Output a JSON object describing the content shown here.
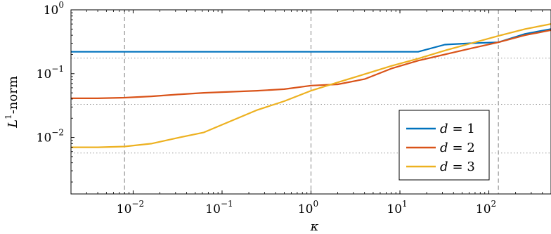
{
  "chart_data": {
    "type": "line",
    "title": "",
    "xlabel": "κ",
    "ylabel_base": "L",
    "ylabel_sup": "1",
    "ylabel_suffix": "-norm",
    "x_scale": "log",
    "y_scale": "log",
    "xlim": [
      0.002,
      500
    ],
    "ylim": [
      0.0013,
      1.0
    ],
    "x_ticks": [
      {
        "value": 0.01,
        "base": "10",
        "exp": "−2"
      },
      {
        "value": 0.1,
        "base": "10",
        "exp": "−1"
      },
      {
        "value": 1,
        "base": "10",
        "exp": "0"
      },
      {
        "value": 10,
        "base": "10",
        "exp": "1"
      },
      {
        "value": 100,
        "base": "10",
        "exp": "2"
      }
    ],
    "y_ticks": [
      {
        "value": 1,
        "base": "10",
        "exp": "0"
      },
      {
        "value": 0.1,
        "base": "10",
        "exp": "−1"
      },
      {
        "value": 0.01,
        "base": "10",
        "exp": "−2"
      }
    ],
    "vertical_dashed_lines": [
      0.008,
      1,
      128
    ],
    "horizontal_dotted_lines": [
      0.175,
      0.033,
      0.0057
    ],
    "legend_position": "lower-right",
    "series": [
      {
        "name": "d = 1",
        "label_var": "d",
        "label_eq": "= 1",
        "color": "#0072BD",
        "x": [
          0.002,
          0.004,
          0.008,
          0.016,
          0.031,
          0.0625,
          0.125,
          0.25,
          0.5,
          1,
          2,
          4,
          8,
          16,
          32,
          64,
          128,
          256,
          500
        ],
        "y": [
          0.22,
          0.22,
          0.22,
          0.22,
          0.22,
          0.22,
          0.22,
          0.22,
          0.22,
          0.22,
          0.22,
          0.22,
          0.22,
          0.22,
          0.285,
          0.3,
          0.31,
          0.42,
          0.5
        ]
      },
      {
        "name": "d = 2",
        "label_var": "d",
        "label_eq": "= 2",
        "color": "#D95319",
        "x": [
          0.002,
          0.004,
          0.008,
          0.016,
          0.031,
          0.0625,
          0.125,
          0.25,
          0.5,
          1,
          2,
          4,
          8,
          16,
          32,
          64,
          128,
          256,
          500
        ],
        "y": [
          0.041,
          0.041,
          0.042,
          0.044,
          0.047,
          0.05,
          0.052,
          0.054,
          0.057,
          0.065,
          0.068,
          0.082,
          0.12,
          0.16,
          0.2,
          0.25,
          0.31,
          0.4,
          0.48
        ]
      },
      {
        "name": "d = 3",
        "label_var": "d",
        "label_eq": "= 3",
        "color": "#EDB120",
        "x": [
          0.002,
          0.004,
          0.008,
          0.016,
          0.031,
          0.0625,
          0.125,
          0.25,
          0.5,
          1,
          2,
          4,
          8,
          16,
          32,
          64,
          128,
          256,
          500
        ],
        "y": [
          0.007,
          0.007,
          0.0072,
          0.008,
          0.0098,
          0.012,
          0.018,
          0.027,
          0.037,
          0.054,
          0.073,
          0.098,
          0.132,
          0.172,
          0.23,
          0.3,
          0.39,
          0.5,
          0.6
        ]
      }
    ]
  }
}
